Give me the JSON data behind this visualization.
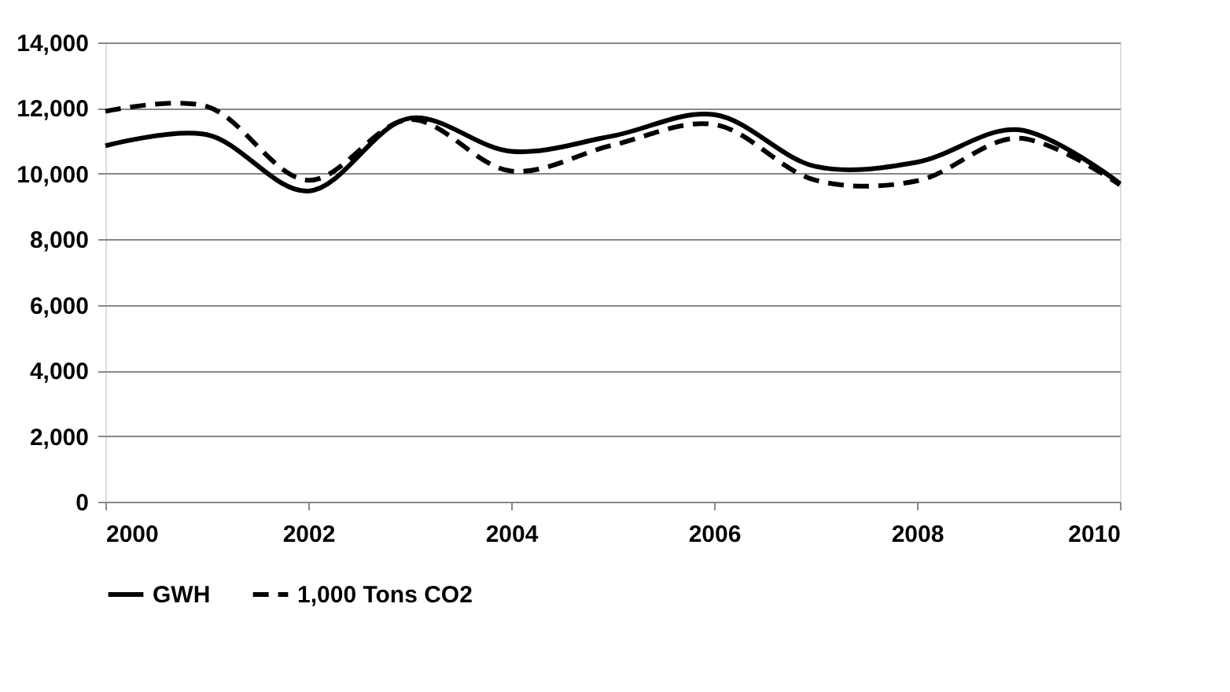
{
  "chart_data": {
    "type": "line",
    "x": [
      2000,
      2001,
      2002,
      2003,
      2004,
      2005,
      2006,
      2007,
      2008,
      2009,
      2010
    ],
    "series": [
      {
        "name": "GWH",
        "color": "#000000",
        "line_style": "solid",
        "values": [
          10850,
          11190,
          9470,
          11690,
          10680,
          11150,
          11800,
          10220,
          10350,
          11340,
          9700
        ]
      },
      {
        "name": "1,000 Tons CO2",
        "color": "#000000",
        "line_style": "dashed",
        "values": [
          11900,
          12050,
          9800,
          11650,
          10080,
          10870,
          11500,
          9800,
          9780,
          11080,
          9660
        ]
      }
    ],
    "xlim": [
      2000,
      2010
    ],
    "xticks": [
      2000,
      2002,
      2004,
      2006,
      2008,
      2010
    ],
    "ylim": [
      0,
      14000
    ],
    "yticks": [
      0,
      {
        "value": 2000,
        "label": "2,000"
      },
      {
        "value": 4000,
        "label": "4,000"
      },
      {
        "value": 6000,
        "label": "6,000"
      },
      {
        "value": 8000,
        "label": "8,000"
      },
      {
        "value": 10000,
        "label": "10,000"
      },
      {
        "value": 12000,
        "label": "12,000"
      },
      {
        "value": 14000,
        "label": "14,000"
      }
    ],
    "grid": "y",
    "legend": "bottom",
    "marker": "none"
  }
}
